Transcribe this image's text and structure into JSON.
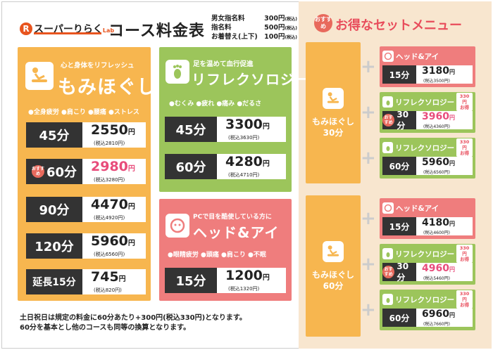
{
  "header": {
    "logo_mark": "R",
    "logo_text": "スーパーりらく",
    "logo_small": "Lab",
    "title": "コース料金表",
    "fees": [
      {
        "label": "男女指名料",
        "value": "300円",
        "tax": "(税込)"
      },
      {
        "label": "指名料",
        "value": "500円",
        "tax": "(税込)"
      },
      {
        "label": "お着替え(上下)",
        "value": "100円",
        "tax": "(税込)"
      }
    ]
  },
  "recommend": {
    "badge": "おすすめ",
    "title": "お得なセットメニュー"
  },
  "massage": {
    "tagline": "心と身体をリフレッシュ",
    "name": "もみほぐし",
    "symptoms": "●全身疲労 ●肩こり ●腰痛 ●ストレス",
    "rows": [
      {
        "duration": "45分",
        "price": "2550",
        "unit": "円",
        "tax": "(税込2810円)"
      },
      {
        "duration": "60分",
        "price": "2980",
        "unit": "円",
        "tax": "(税込3280円)",
        "badge": "おすすめ"
      },
      {
        "duration": "90分",
        "price": "4470",
        "unit": "円",
        "tax": "(税込4920円)"
      },
      {
        "duration": "120分",
        "price": "5960",
        "unit": "円",
        "tax": "(税込6560円)"
      },
      {
        "duration": "延長15分",
        "price": "745",
        "unit": "円",
        "tax": "(税込820円)"
      }
    ]
  },
  "reflex": {
    "tagline": "足を温めて血行促進",
    "name": "リフレクソロジー",
    "symptoms": "●むくみ ●疲れ ●痛み ●だるさ",
    "rows": [
      {
        "duration": "45分",
        "price": "3300",
        "unit": "円",
        "tax": "(税込3630円)"
      },
      {
        "duration": "60分",
        "price": "4280",
        "unit": "円",
        "tax": "(税込4710円)"
      }
    ]
  },
  "head": {
    "tagline": "PCで目を酷使している方に",
    "name": "ヘッド&アイ",
    "symptoms": "●眼精疲労 ●頭痛 ●肩こり ●不眠",
    "rows": [
      {
        "duration": "15分",
        "price": "1200",
        "unit": "円",
        "tax": "(税込1320円)"
      }
    ]
  },
  "notes": [
    "土日祝日は規定の料金に60分あたり+300円(税込330円)となります。",
    "60分を基本とし他のコースも同等の換算となります。"
  ],
  "sets": [
    {
      "base_name_1": "もみほぐし",
      "base_name_2": "30分",
      "plus": "+",
      "cards": [
        {
          "name": "ヘッド&アイ",
          "duration": "15分",
          "price": "3180",
          "unit": "円",
          "tax": "(税込3500円)",
          "color": "#ef7d7d"
        },
        {
          "name": "リフレクソロジー",
          "otoku_1": "330円",
          "otoku_2": "お得",
          "badge": "おすすめ",
          "duration": "30分",
          "price": "3960",
          "unit": "円",
          "tax": "(税込4360円)",
          "color": "#9cc55b"
        },
        {
          "name": "リフレクソロジー",
          "otoku_1": "330円",
          "otoku_2": "お得",
          "duration": "60分",
          "price": "5960",
          "unit": "円",
          "tax": "(税込6560円)",
          "color": "#9cc55b"
        }
      ]
    },
    {
      "base_name_1": "もみほぐし",
      "base_name_2": "60分",
      "plus": "+",
      "cards": [
        {
          "name": "ヘッド&アイ",
          "duration": "15分",
          "price": "4180",
          "unit": "円",
          "tax": "(税込4600円)",
          "color": "#ef7d7d"
        },
        {
          "name": "リフレクソロジー",
          "otoku_1": "330円",
          "otoku_2": "お得",
          "badge": "おすすめ",
          "duration": "30分",
          "price": "4960",
          "unit": "円",
          "tax": "(税込5460円)",
          "color": "#9cc55b"
        },
        {
          "name": "リフレクソロジー",
          "otoku_1": "330円",
          "otoku_2": "お得",
          "duration": "60分",
          "price": "6960",
          "unit": "円",
          "tax": "(税込7660円)",
          "color": "#9cc55b"
        }
      ]
    }
  ],
  "colors": {
    "yellow": "#f7b64f",
    "green": "#9cc55b",
    "pink": "#ef7d7d",
    "accent": "#e84c7b",
    "cream": "#f8e6cf"
  }
}
